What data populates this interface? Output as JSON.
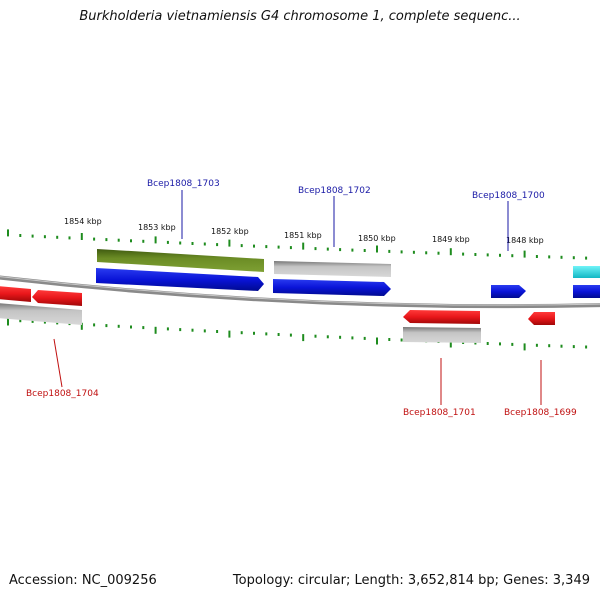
{
  "title": "Burkholderia vietnamiensis G4 chromosome 1, complete sequenc...",
  "footer": {
    "accession": "Accession: NC_009256",
    "summary": "Topology: circular; Length: 3,652,814 bp; Genes: 3,349"
  },
  "scale_labels": [
    "1854 kbp",
    "1853 kbp",
    "1852 kbp",
    "1851 kbp",
    "1850 kbp",
    "1849 kbp",
    "1848 kbp"
  ],
  "gene_labels": {
    "forward": [
      "Bcep1808_1703",
      "Bcep1808_1702",
      "Bcep1808_1700"
    ],
    "reverse": [
      "Bcep1808_1704",
      "Bcep1808_1701",
      "Bcep1808_1699"
    ]
  },
  "colors": {
    "forward_cds": "#0a14d8",
    "reverse_cds": "#e8161a",
    "forward_label": "#1a1aa6",
    "reverse_label": "#c01010",
    "green_feature": "#6b8c25",
    "gray_feature": "#b8b8b8",
    "cyan_feature": "#2ad8e0",
    "tick": "#1e8c1e",
    "backbone": "#8a8a8a"
  }
}
